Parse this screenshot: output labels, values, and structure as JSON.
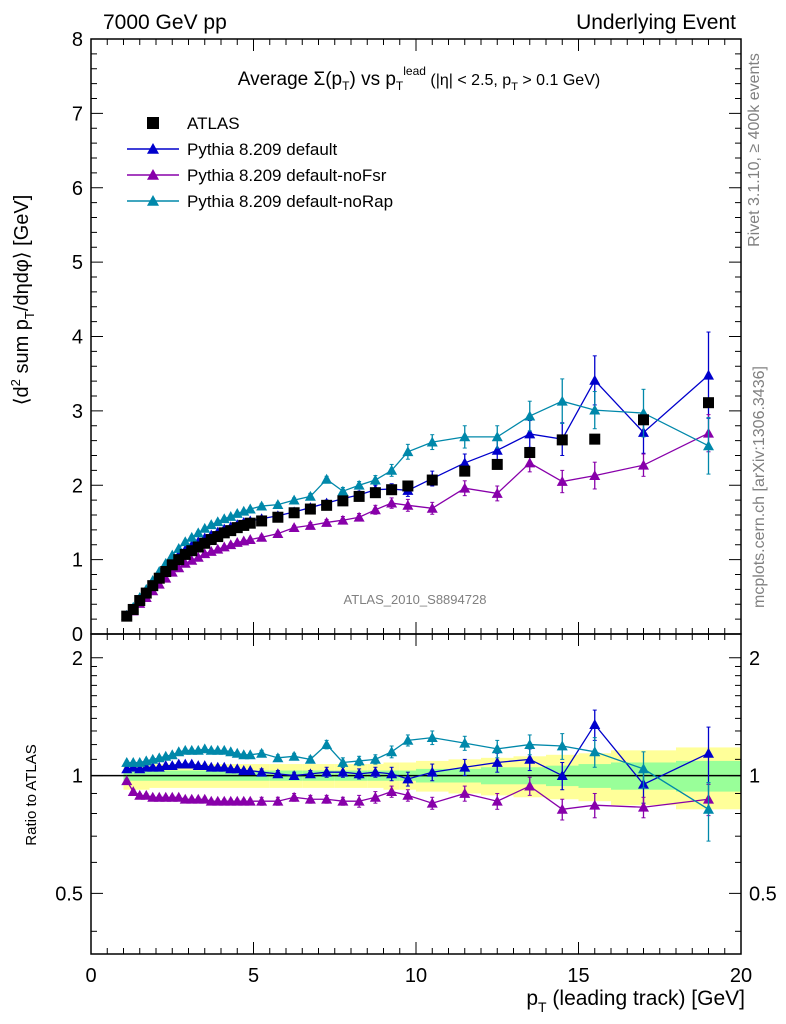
{
  "header": {
    "left": "7000 GeV pp",
    "right": "Underlying Event"
  },
  "side_labels": {
    "rivet": "Rivet 3.1.10, ≥ 400k events",
    "mcplots": "mcplots.cern.ch [arXiv:1306.3436]"
  },
  "analysis_id": "ATLAS_2010_S8894728",
  "colors": {
    "atlas": "#000000",
    "default": "#0000cc",
    "noFsr": "#8800aa",
    "noRap": "#0088aa",
    "band_yellow": "#ffff99",
    "band_green": "#99ff99"
  },
  "chart_data": [
    {
      "type": "scatter",
      "title": "Average Σ(pT) vs pT lead (|η| < 2.5, pT > 0.1 GeV)",
      "xlabel": "pT (leading track) [GeV]",
      "ylabel": "⟨d² sum pT/dηdφ⟩ [GeV]",
      "xlim": [
        0,
        20
      ],
      "ylim": [
        0,
        8
      ],
      "yticks": [
        0,
        1,
        2,
        3,
        4,
        5,
        6,
        7,
        8
      ],
      "legend_position": "top-left",
      "series": [
        {
          "name": "ATLAS",
          "marker": "square",
          "x": [
            1.1,
            1.3,
            1.5,
            1.7,
            1.9,
            2.1,
            2.3,
            2.5,
            2.7,
            2.9,
            3.1,
            3.3,
            3.5,
            3.7,
            3.9,
            4.1,
            4.3,
            4.5,
            4.7,
            4.9,
            5.25,
            5.75,
            6.25,
            6.75,
            7.25,
            7.75,
            8.25,
            8.75,
            9.25,
            9.75,
            10.5,
            11.5,
            12.5,
            13.5,
            14.5,
            15.5,
            17,
            19
          ],
          "y": [
            0.24,
            0.33,
            0.45,
            0.55,
            0.65,
            0.75,
            0.84,
            0.93,
            1.0,
            1.07,
            1.12,
            1.17,
            1.22,
            1.27,
            1.31,
            1.36,
            1.39,
            1.43,
            1.46,
            1.49,
            1.52,
            1.57,
            1.63,
            1.68,
            1.73,
            1.79,
            1.85,
            1.9,
            1.94,
            1.99,
            2.07,
            2.19,
            2.28,
            2.44,
            2.61,
            2.62,
            2.88,
            3.11
          ]
        },
        {
          "name": "Pythia 8.209 default",
          "marker": "triangle",
          "x": [
            1.1,
            1.3,
            1.5,
            1.7,
            1.9,
            2.1,
            2.3,
            2.5,
            2.7,
            2.9,
            3.1,
            3.3,
            3.5,
            3.7,
            3.9,
            4.1,
            4.3,
            4.5,
            4.7,
            4.9,
            5.25,
            5.75,
            6.25,
            6.75,
            7.25,
            7.75,
            8.25,
            8.75,
            9.25,
            9.75,
            10.5,
            11.5,
            12.5,
            13.5,
            14.5,
            15.5,
            17,
            19
          ],
          "y": [
            0.25,
            0.35,
            0.47,
            0.58,
            0.69,
            0.79,
            0.88,
            0.98,
            1.06,
            1.13,
            1.19,
            1.24,
            1.29,
            1.33,
            1.37,
            1.41,
            1.44,
            1.47,
            1.5,
            1.52,
            1.55,
            1.59,
            1.64,
            1.7,
            1.76,
            1.82,
            1.87,
            1.94,
            1.95,
            1.93,
            2.09,
            2.3,
            2.47,
            2.69,
            2.62,
            3.41,
            2.71,
            3.48
          ],
          "yerr": [
            0.01,
            0.01,
            0.01,
            0.01,
            0.01,
            0.01,
            0.01,
            0.01,
            0.01,
            0.01,
            0.02,
            0.02,
            0.02,
            0.02,
            0.02,
            0.02,
            0.02,
            0.02,
            0.02,
            0.02,
            0.03,
            0.03,
            0.03,
            0.04,
            0.04,
            0.05,
            0.05,
            0.06,
            0.07,
            0.08,
            0.1,
            0.12,
            0.15,
            0.18,
            0.22,
            0.33,
            0.28,
            0.58
          ]
        },
        {
          "name": "Pythia 8.209 default-noFsr",
          "marker": "triangle",
          "x": [
            1.1,
            1.3,
            1.5,
            1.7,
            1.9,
            2.1,
            2.3,
            2.5,
            2.7,
            2.9,
            3.1,
            3.3,
            3.5,
            3.7,
            3.9,
            4.1,
            4.3,
            4.5,
            4.7,
            4.9,
            5.25,
            5.75,
            6.25,
            6.75,
            7.25,
            7.75,
            8.25,
            8.75,
            9.25,
            9.75,
            10.5,
            11.5,
            12.5,
            13.5,
            14.5,
            15.5,
            17,
            19
          ],
          "y": [
            0.23,
            0.31,
            0.41,
            0.49,
            0.58,
            0.67,
            0.75,
            0.83,
            0.89,
            0.95,
            0.99,
            1.03,
            1.08,
            1.11,
            1.14,
            1.17,
            1.2,
            1.23,
            1.25,
            1.27,
            1.3,
            1.35,
            1.43,
            1.46,
            1.5,
            1.53,
            1.57,
            1.67,
            1.76,
            1.73,
            1.69,
            1.96,
            1.89,
            2.3,
            2.05,
            2.13,
            2.27,
            2.7
          ],
          "yerr": [
            0.01,
            0.01,
            0.01,
            0.01,
            0.01,
            0.01,
            0.01,
            0.01,
            0.01,
            0.01,
            0.02,
            0.02,
            0.02,
            0.02,
            0.02,
            0.02,
            0.02,
            0.02,
            0.02,
            0.02,
            0.03,
            0.03,
            0.03,
            0.04,
            0.04,
            0.05,
            0.05,
            0.06,
            0.07,
            0.08,
            0.08,
            0.1,
            0.1,
            0.12,
            0.15,
            0.18,
            0.15,
            0.25
          ]
        },
        {
          "name": "Pythia 8.209 default-noRap",
          "marker": "triangle",
          "x": [
            1.1,
            1.3,
            1.5,
            1.7,
            1.9,
            2.1,
            2.3,
            2.5,
            2.7,
            2.9,
            3.1,
            3.3,
            3.5,
            3.7,
            3.9,
            4.1,
            4.3,
            4.5,
            4.7,
            4.9,
            5.25,
            5.75,
            6.25,
            6.75,
            7.25,
            7.75,
            8.25,
            8.75,
            9.25,
            9.75,
            10.5,
            11.5,
            12.5,
            13.5,
            14.5,
            15.5,
            17,
            19
          ],
          "y": [
            0.25,
            0.36,
            0.49,
            0.6,
            0.72,
            0.84,
            0.95,
            1.06,
            1.15,
            1.24,
            1.3,
            1.36,
            1.42,
            1.47,
            1.51,
            1.55,
            1.58,
            1.62,
            1.65,
            1.68,
            1.72,
            1.74,
            1.8,
            1.85,
            2.08,
            1.92,
            2.0,
            2.07,
            2.2,
            2.45,
            2.58,
            2.65,
            2.65,
            2.93,
            3.13,
            3.01,
            2.97,
            2.53
          ],
          "yerr": [
            0.01,
            0.01,
            0.01,
            0.01,
            0.01,
            0.01,
            0.01,
            0.01,
            0.01,
            0.01,
            0.02,
            0.02,
            0.02,
            0.02,
            0.02,
            0.02,
            0.02,
            0.02,
            0.02,
            0.02,
            0.03,
            0.03,
            0.03,
            0.04,
            0.04,
            0.05,
            0.05,
            0.06,
            0.08,
            0.1,
            0.1,
            0.15,
            0.15,
            0.2,
            0.3,
            0.25,
            0.32,
            0.38
          ]
        }
      ]
    },
    {
      "type": "scatter",
      "ylabel": "Ratio to ATLAS",
      "xlabel": "pT (leading track) [GeV]",
      "xlim": [
        0,
        20
      ],
      "ylim": [
        0.35,
        2.3
      ],
      "yscale": "log",
      "yticks": [
        0.5,
        1,
        2
      ],
      "xticks": [
        0,
        5,
        10,
        15,
        20
      ],
      "bands": {
        "x_edges": [
          1.0,
          1.2,
          1.4,
          1.6,
          1.8,
          2.0,
          2.2,
          2.4,
          2.6,
          2.8,
          3.0,
          3.2,
          3.4,
          3.6,
          3.8,
          4.0,
          4.2,
          4.4,
          4.6,
          4.8,
          5.0,
          5.5,
          6.0,
          6.5,
          7.0,
          7.5,
          8.0,
          8.5,
          9.0,
          9.5,
          10.0,
          11.0,
          12.0,
          13.0,
          14.0,
          15.0,
          16.0,
          18.0,
          20.0
        ],
        "yellow_half_width": [
          0.08,
          0.08,
          0.08,
          0.08,
          0.07,
          0.07,
          0.07,
          0.07,
          0.07,
          0.07,
          0.07,
          0.07,
          0.07,
          0.07,
          0.07,
          0.07,
          0.07,
          0.07,
          0.07,
          0.07,
          0.07,
          0.07,
          0.07,
          0.07,
          0.07,
          0.07,
          0.07,
          0.07,
          0.08,
          0.08,
          0.09,
          0.1,
          0.11,
          0.12,
          0.13,
          0.14,
          0.16,
          0.18
        ],
        "green_half_width": [
          0.03,
          0.03,
          0.03,
          0.03,
          0.03,
          0.03,
          0.03,
          0.03,
          0.03,
          0.03,
          0.03,
          0.03,
          0.03,
          0.03,
          0.03,
          0.03,
          0.03,
          0.03,
          0.03,
          0.03,
          0.03,
          0.03,
          0.03,
          0.03,
          0.03,
          0.03,
          0.03,
          0.03,
          0.03,
          0.03,
          0.04,
          0.04,
          0.05,
          0.05,
          0.06,
          0.07,
          0.08,
          0.09
        ]
      },
      "series": [
        {
          "name": "Pythia 8.209 default",
          "x": [
            1.1,
            1.3,
            1.5,
            1.7,
            1.9,
            2.1,
            2.3,
            2.5,
            2.7,
            2.9,
            3.1,
            3.3,
            3.5,
            3.7,
            3.9,
            4.1,
            4.3,
            4.5,
            4.7,
            4.9,
            5.25,
            5.75,
            6.25,
            6.75,
            7.25,
            7.75,
            8.25,
            8.75,
            9.25,
            9.75,
            10.5,
            11.5,
            12.5,
            13.5,
            14.5,
            15.5,
            17,
            19
          ],
          "y": [
            1.04,
            1.05,
            1.04,
            1.05,
            1.05,
            1.05,
            1.06,
            1.06,
            1.07,
            1.07,
            1.07,
            1.06,
            1.06,
            1.05,
            1.05,
            1.05,
            1.04,
            1.04,
            1.03,
            1.03,
            1.02,
            1.01,
            1.0,
            1.01,
            1.02,
            1.02,
            1.01,
            1.02,
            1.01,
            0.98,
            1.02,
            1.05,
            1.08,
            1.1,
            1.0,
            1.35,
            0.95,
            1.14
          ],
          "yerr": [
            0.01,
            0.01,
            0.01,
            0.01,
            0.01,
            0.01,
            0.01,
            0.01,
            0.01,
            0.01,
            0.01,
            0.01,
            0.01,
            0.01,
            0.01,
            0.01,
            0.01,
            0.01,
            0.01,
            0.01,
            0.02,
            0.02,
            0.02,
            0.02,
            0.03,
            0.03,
            0.03,
            0.03,
            0.04,
            0.04,
            0.05,
            0.05,
            0.06,
            0.07,
            0.08,
            0.12,
            0.1,
            0.19
          ]
        },
        {
          "name": "Pythia 8.209 default-noFsr",
          "x": [
            1.1,
            1.3,
            1.5,
            1.7,
            1.9,
            2.1,
            2.3,
            2.5,
            2.7,
            2.9,
            3.1,
            3.3,
            3.5,
            3.7,
            3.9,
            4.1,
            4.3,
            4.5,
            4.7,
            4.9,
            5.25,
            5.75,
            6.25,
            6.75,
            7.25,
            7.75,
            8.25,
            8.75,
            9.25,
            9.75,
            10.5,
            11.5,
            12.5,
            13.5,
            14.5,
            15.5,
            17,
            19
          ],
          "y": [
            0.97,
            0.91,
            0.89,
            0.89,
            0.88,
            0.88,
            0.88,
            0.88,
            0.88,
            0.87,
            0.87,
            0.87,
            0.87,
            0.86,
            0.86,
            0.86,
            0.86,
            0.86,
            0.86,
            0.86,
            0.86,
            0.86,
            0.88,
            0.87,
            0.87,
            0.86,
            0.86,
            0.88,
            0.91,
            0.89,
            0.85,
            0.9,
            0.86,
            0.94,
            0.82,
            0.84,
            0.83,
            0.87
          ],
          "yerr": [
            0.01,
            0.01,
            0.01,
            0.01,
            0.01,
            0.01,
            0.01,
            0.01,
            0.01,
            0.01,
            0.01,
            0.01,
            0.01,
            0.01,
            0.01,
            0.01,
            0.01,
            0.01,
            0.01,
            0.01,
            0.02,
            0.02,
            0.02,
            0.02,
            0.02,
            0.02,
            0.03,
            0.03,
            0.03,
            0.03,
            0.03,
            0.04,
            0.04,
            0.05,
            0.05,
            0.06,
            0.05,
            0.08
          ]
        },
        {
          "name": "Pythia 8.209 default-noRap",
          "x": [
            1.1,
            1.3,
            1.5,
            1.7,
            1.9,
            2.1,
            2.3,
            2.5,
            2.7,
            2.9,
            3.1,
            3.3,
            3.5,
            3.7,
            3.9,
            4.1,
            4.3,
            4.5,
            4.7,
            4.9,
            5.25,
            5.75,
            6.25,
            6.75,
            7.25,
            7.75,
            8.25,
            8.75,
            9.25,
            9.75,
            10.5,
            11.5,
            12.5,
            13.5,
            14.5,
            15.5,
            17,
            19
          ],
          "y": [
            1.08,
            1.08,
            1.08,
            1.09,
            1.1,
            1.11,
            1.12,
            1.13,
            1.15,
            1.16,
            1.16,
            1.16,
            1.17,
            1.16,
            1.16,
            1.16,
            1.15,
            1.14,
            1.13,
            1.13,
            1.14,
            1.11,
            1.12,
            1.1,
            1.2,
            1.08,
            1.09,
            1.1,
            1.15,
            1.23,
            1.25,
            1.21,
            1.17,
            1.2,
            1.19,
            1.15,
            1.04,
            0.82
          ],
          "yerr": [
            0.01,
            0.01,
            0.01,
            0.01,
            0.01,
            0.01,
            0.01,
            0.01,
            0.01,
            0.01,
            0.01,
            0.01,
            0.01,
            0.01,
            0.01,
            0.01,
            0.01,
            0.01,
            0.01,
            0.01,
            0.02,
            0.02,
            0.02,
            0.02,
            0.03,
            0.03,
            0.03,
            0.03,
            0.04,
            0.04,
            0.05,
            0.05,
            0.06,
            0.07,
            0.09,
            0.1,
            0.11,
            0.14
          ]
        }
      ]
    }
  ]
}
